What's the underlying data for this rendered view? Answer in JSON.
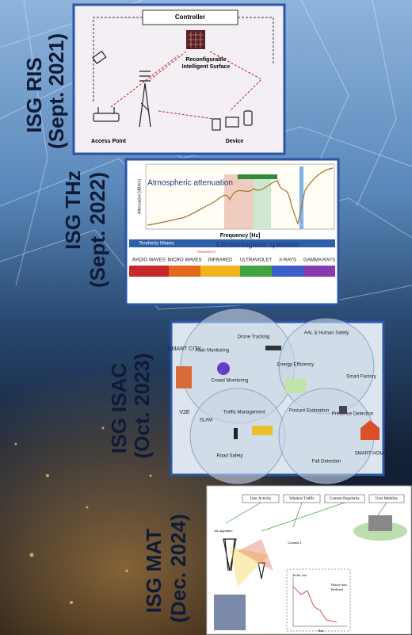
{
  "labels": [
    {
      "name": "ISG RIS",
      "date": "(Sept. 2021)"
    },
    {
      "name": "ISG THz",
      "date": "(Sept. 2022)"
    },
    {
      "name": "ISG ISAC",
      "date": "(Oct. 2023)"
    },
    {
      "name": "ISG MAT",
      "date": "(Dec. 2024)"
    }
  ],
  "panels": {
    "ris": {
      "controller": "Controller",
      "surface": [
        "Reconfigurable",
        "Intelligent Surface"
      ],
      "access_point": "Access Point",
      "device": "Device"
    },
    "thz": {
      "y_axis": "Attenuation [dB/km]",
      "title": "Atmospheric attenuation",
      "x_axis": "Frequency [Hz]",
      "band": "Terahertz Waves",
      "spectrum": "Electromagnetic spectrum",
      "terahertz": "TERAHERTZ",
      "regions": [
        "RADIO WAVES",
        "MICRO WAVES",
        "INFRARED",
        "ULTRAVIOLET",
        "X-RAYS",
        "GAMMA RAYS"
      ]
    },
    "isac": {
      "smart_city": "SMART CITY",
      "rain": "Rain Monitoring",
      "drone": "Drone Tracking",
      "crowd": "Crowd Monitoring",
      "energy": "Energy Efficiency",
      "aal": "AAL & Human Safety",
      "factory": "Smart Factory",
      "v2e": "V2E",
      "slam": "SLAM",
      "traffic": "Traffic Management",
      "road": "Road Safety",
      "posture": "Posture Estimation",
      "presence": "Presence Detection",
      "fall": "Fall Detection",
      "smart_home": "SMART HOME"
    },
    "mat": {
      "headers": [
        "User Activity",
        "Window Traffic",
        "Content Popularity",
        "User Mobility"
      ],
      "ml": "ML algorithm",
      "content": "Content 1",
      "traffic_rate": "Traffic rate",
      "history": "History data",
      "predicted": "Predicted",
      "time": "Time"
    }
  }
}
